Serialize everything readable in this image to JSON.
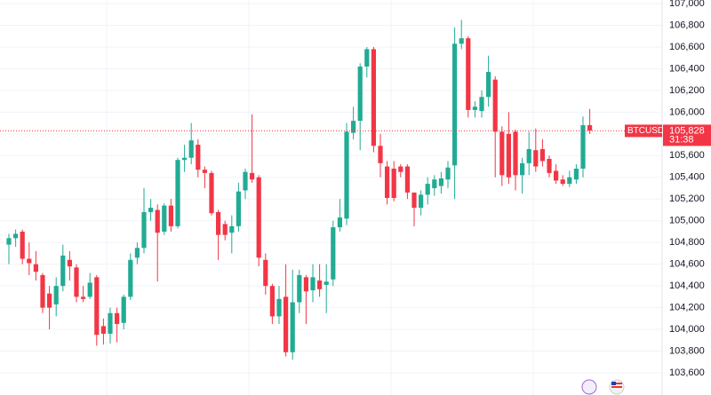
{
  "chart_data": {
    "type": "candlestick",
    "up_color": "#22ab94",
    "down_color": "#f23645",
    "grid": true,
    "ylim": [
      103400,
      107000
    ],
    "yticks": [
      {
        "value": 103600,
        "label": "103,600"
      },
      {
        "value": 103800,
        "label": "103,800"
      },
      {
        "value": 104000,
        "label": "104,000"
      },
      {
        "value": 104200,
        "label": "104,200"
      },
      {
        "value": 104400,
        "label": "104,400"
      },
      {
        "value": 104600,
        "label": "104,600"
      },
      {
        "value": 104800,
        "label": "104,800"
      },
      {
        "value": 105000,
        "label": "105,000"
      },
      {
        "value": 105200,
        "label": "105,200"
      },
      {
        "value": 105400,
        "label": "105,400"
      },
      {
        "value": 105600,
        "label": "105,600"
      },
      {
        "value": 105800,
        "label": "105,800"
      },
      {
        "value": 106000,
        "label": "106,000"
      },
      {
        "value": 106200,
        "label": "106,200"
      },
      {
        "value": 106400,
        "label": "106,400"
      },
      {
        "value": 106600,
        "label": "106,600"
      },
      {
        "value": 106800,
        "label": "106,800"
      },
      {
        "value": 107000,
        "label": "107,000"
      }
    ],
    "symbol": "BTCUSD",
    "last_price": {
      "value": 105828,
      "label": "105,828"
    },
    "countdown": "31:38",
    "open": [
      104780,
      104840,
      104900,
      104650,
      104600,
      104500,
      104330,
      104230,
      104400,
      104640,
      104570,
      104300,
      104300,
      104480,
      104030,
      103960,
      104150,
      104060,
      104300,
      104660,
      104750,
      105080,
      105100,
      104900,
      105140,
      104950,
      105560,
      105580,
      105700,
      105470,
      105440,
      105080,
      104970,
      104890,
      104950,
      105280,
      105440,
      105400,
      104640,
      104400,
      104120,
      104300,
      103790,
      104250,
      104480,
      104360,
      104450,
      104410,
      104460,
      104940,
      105020,
      105810,
      105920,
      106420,
      106580,
      105690,
      105500,
      105480,
      105500,
      105500,
      105260,
      105120,
      105240,
      105300,
      105320,
      105380,
      105510,
      106630,
      106680,
      106020,
      106010,
      106140,
      106300,
      105820,
      105800,
      105820,
      105420,
      105530,
      105650,
      105660,
      105570,
      105460,
      105380,
      105340,
      105380,
      105480,
      105880
    ],
    "high": [
      104880,
      104920,
      104920,
      104800,
      104720,
      104520,
      104400,
      104480,
      104780,
      104720,
      104600,
      104400,
      104520,
      104500,
      104100,
      104200,
      104200,
      104320,
      104700,
      104800,
      105300,
      105200,
      105150,
      105160,
      105200,
      105580,
      105700,
      105900,
      105750,
      105500,
      105460,
      105100,
      105000,
      105050,
      105350,
      105480,
      105980,
      105420,
      104700,
      104420,
      104400,
      104600,
      104550,
      104550,
      104500,
      104600,
      104600,
      104600,
      105000,
      105200,
      105900,
      106050,
      106450,
      106600,
      106600,
      105800,
      105550,
      105550,
      105520,
      105520,
      105250,
      105280,
      105400,
      105420,
      105450,
      105550,
      106780,
      106850,
      106700,
      106100,
      106200,
      106520,
      106330,
      105870,
      106000,
      105840,
      105580,
      105820,
      105850,
      105750,
      105600,
      105520,
      105420,
      105460,
      105520,
      105960,
      106030
    ],
    "low": [
      104600,
      104760,
      104600,
      104500,
      104450,
      104150,
      104000,
      104120,
      104350,
      104450,
      104250,
      104250,
      104280,
      103850,
      103860,
      103870,
      103880,
      104000,
      104270,
      104600,
      104700,
      105000,
      104440,
      104870,
      104900,
      104930,
      105450,
      105520,
      105400,
      105300,
      105050,
      104640,
      104820,
      104700,
      104900,
      105200,
      105350,
      104580,
      104320,
      104050,
      104050,
      103750,
      103720,
      104150,
      104050,
      104250,
      104300,
      104150,
      104400,
      104900,
      104960,
      105750,
      105650,
      106320,
      105630,
      105400,
      105150,
      105180,
      105400,
      105200,
      104950,
      105050,
      105150,
      105230,
      105250,
      105300,
      105200,
      106580,
      105950,
      105950,
      105950,
      106050,
      105400,
      105320,
      105340,
      105280,
      105250,
      105420,
      105450,
      105500,
      105400,
      105340,
      105320,
      105310,
      105340,
      105400,
      105800
    ],
    "close": [
      104840,
      104880,
      104650,
      104610,
      104530,
      104200,
      104200,
      104400,
      104680,
      104580,
      104300,
      104280,
      104430,
      103950,
      103960,
      104150,
      104050,
      104300,
      104640,
      104750,
      105080,
      105120,
      104890,
      105140,
      104950,
      105560,
      105580,
      105740,
      105470,
      105440,
      105070,
      104870,
      104870,
      104950,
      105270,
      105450,
      105380,
      104660,
      104400,
      104120,
      104280,
      103790,
      104250,
      104500,
      104350,
      104480,
      104370,
      104440,
      104940,
      105030,
      105820,
      105920,
      106420,
      106580,
      105690,
      105530,
      105210,
      105210,
      105450,
      105260,
      105120,
      105240,
      105340,
      105380,
      105390,
      105490,
      106630,
      106680,
      106020,
      106050,
      106140,
      106370,
      105820,
      105420,
      105400,
      105420,
      105530,
      105660,
      105500,
      105550,
      105440,
      105370,
      105340,
      105400,
      105480,
      105880,
      105830
    ]
  }
}
